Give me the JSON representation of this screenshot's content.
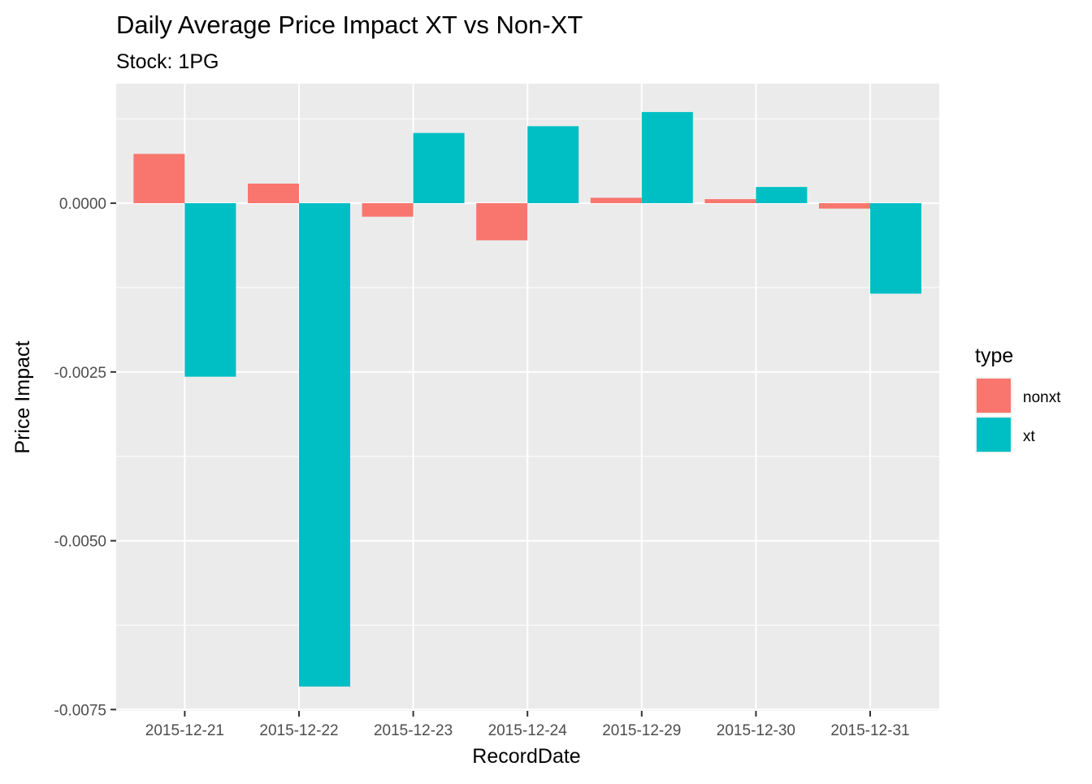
{
  "chart_data": {
    "type": "bar",
    "title": "Daily Average Price Impact XT vs Non-XT",
    "subtitle": "Stock: 1PG",
    "xlabel": "RecordDate",
    "ylabel": "Price Impact",
    "categories": [
      "2015-12-21",
      "2015-12-22",
      "2015-12-23",
      "2015-12-24",
      "2015-12-29",
      "2015-12-30",
      "2015-12-31"
    ],
    "series": [
      {
        "name": "nonxt",
        "color": "#F8766D",
        "values": [
          0.00073,
          0.00029,
          -0.0002,
          -0.00055,
          8e-05,
          6e-05,
          -8e-05
        ]
      },
      {
        "name": "xt",
        "color": "#00BFC4",
        "values": [
          -0.00257,
          -0.00716,
          0.00104,
          0.00114,
          0.00135,
          0.00024,
          -0.00134
        ]
      }
    ],
    "ylim": [
      -0.00752,
      0.00177
    ],
    "yticks": [
      0,
      -0.0025,
      -0.005,
      -0.0075
    ],
    "ytick_labels": [
      "0.0000",
      "-0.0025",
      "-0.0050",
      "-0.0075"
    ],
    "legend": {
      "title": "type",
      "position": "right"
    },
    "grid": true,
    "panel_background": "#EBEBEB"
  }
}
